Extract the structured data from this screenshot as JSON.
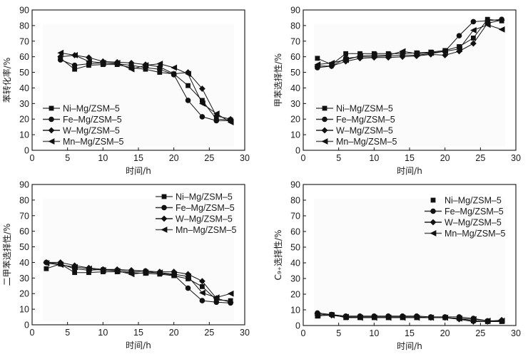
{
  "chart_data": [
    {
      "type": "line",
      "title": "",
      "xlabel": "时间/h",
      "ylabel": "苯转化率/%",
      "xlim": [
        0,
        30
      ],
      "ylim": [
        0,
        90
      ],
      "xticks": [
        "0",
        "5",
        "10",
        "15",
        "20",
        "25",
        "30"
      ],
      "yticks": [
        "0",
        "10",
        "20",
        "30",
        "40",
        "50",
        "60",
        "70",
        "80",
        "90"
      ],
      "grid": false,
      "legend_position": "bottom-left",
      "series": [
        {
          "name": "Ni–Mg/ZSM–5",
          "marker": "square",
          "x": [
            4,
            6,
            8,
            10,
            12,
            14,
            16,
            18,
            20,
            22,
            24,
            26,
            28
          ],
          "values": [
            59,
            52,
            54.5,
            55,
            55,
            53,
            52,
            50,
            49,
            41.5,
            32,
            20,
            19.5
          ]
        },
        {
          "name": "Fe–Mg/ZSM–5",
          "marker": "circle",
          "x": [
            4,
            6,
            8,
            10,
            12,
            14,
            16,
            18,
            20,
            22,
            24,
            26,
            28
          ],
          "values": [
            58,
            54.5,
            55.5,
            56,
            55.5,
            54.5,
            53,
            52,
            48.5,
            32,
            21.5,
            19,
            19
          ]
        },
        {
          "name": "W–Mg/ZSM–5",
          "marker": "diamond",
          "x": [
            4,
            6,
            8,
            10,
            12,
            14,
            16,
            18,
            20,
            22,
            24,
            26,
            28
          ],
          "values": [
            60,
            61,
            59.5,
            57,
            56.5,
            56,
            55,
            53.5,
            49,
            50,
            39.5,
            22,
            20
          ]
        },
        {
          "name": "Mn–Mg/ZSM–5",
          "marker": "triangle-left",
          "x": [
            4,
            6,
            8,
            10,
            12,
            14,
            16,
            18,
            20,
            22,
            24,
            26,
            28
          ],
          "values": [
            62.5,
            61,
            57,
            56,
            56,
            52,
            54.5,
            55.5,
            53,
            49,
            30,
            23.5,
            18
          ]
        }
      ]
    },
    {
      "type": "line",
      "title": "",
      "xlabel": "时间/h",
      "ylabel": "甲苯选择性/%",
      "xlim": [
        0,
        30
      ],
      "ylim": [
        0,
        90
      ],
      "xticks": [
        "0",
        "5",
        "10",
        "15",
        "20",
        "25",
        "30"
      ],
      "yticks": [
        "0",
        "10",
        "20",
        "30",
        "40",
        "50",
        "60",
        "70",
        "80",
        "90"
      ],
      "grid": false,
      "legend_position": "bottom-left",
      "series": [
        {
          "name": "Ni–Mg/ZSM–5",
          "marker": "square",
          "x": [
            2,
            4,
            6,
            8,
            10,
            12,
            14,
            16,
            18,
            20,
            22,
            24,
            26,
            28
          ],
          "values": [
            59,
            55,
            62,
            62,
            62,
            62,
            62,
            62.5,
            63,
            64,
            66.5,
            72,
            84,
            83
          ]
        },
        {
          "name": "Fe–Mg/ZSM–5",
          "marker": "circle",
          "x": [
            2,
            4,
            6,
            8,
            10,
            12,
            14,
            16,
            18,
            20,
            22,
            24,
            26,
            28
          ],
          "values": [
            53,
            54,
            59,
            60,
            60,
            60.5,
            61,
            61,
            62,
            63.5,
            73.5,
            82.5,
            83,
            84
          ]
        },
        {
          "name": "W–Mg/ZSM–5",
          "marker": "diamond",
          "x": [
            2,
            4,
            6,
            8,
            10,
            12,
            14,
            16,
            18,
            20,
            22,
            24,
            26,
            28
          ],
          "values": [
            54,
            54,
            57,
            59,
            59.5,
            59.5,
            60,
            60.5,
            61.5,
            61,
            63.5,
            68.5,
            81.5,
            83.5
          ]
        },
        {
          "name": "Mn–Mg/ZSM–5",
          "marker": "triangle-left",
          "x": [
            2,
            4,
            6,
            8,
            10,
            12,
            14,
            16,
            18,
            20,
            22,
            24,
            26,
            28
          ],
          "values": [
            55,
            56,
            58,
            60.5,
            61,
            61,
            63.5,
            62,
            62.5,
            63.5,
            65,
            77,
            80.5,
            77.5
          ]
        }
      ]
    },
    {
      "type": "line",
      "title": "",
      "xlabel": "时间/h",
      "ylabel": "二甲苯选择性/%",
      "xlim": [
        0,
        30
      ],
      "ylim": [
        0,
        90
      ],
      "xticks": [
        "0",
        "5",
        "10",
        "15",
        "20",
        "25",
        "30"
      ],
      "yticks": [
        "0",
        "10",
        "20",
        "30",
        "40",
        "50",
        "60",
        "70",
        "80",
        "90"
      ],
      "grid": false,
      "legend_position": "top-right",
      "series": [
        {
          "name": "Ni–Mg/ZSM–5",
          "marker": "square",
          "x": [
            2,
            4,
            6,
            8,
            10,
            12,
            14,
            16,
            18,
            20,
            22,
            24,
            26,
            28
          ],
          "values": [
            36,
            39,
            33.5,
            33.5,
            34,
            34,
            33.5,
            33,
            32.5,
            31.5,
            29.5,
            24.5,
            16,
            15.5
          ]
        },
        {
          "name": "Fe–Mg/ZSM–5",
          "marker": "circle",
          "x": [
            2,
            4,
            6,
            8,
            10,
            12,
            14,
            16,
            18,
            20,
            22,
            24,
            26,
            28
          ],
          "values": [
            40,
            39,
            36,
            35,
            35.5,
            35,
            34,
            34.5,
            33,
            32,
            23.5,
            15.5,
            14.5,
            14
          ]
        },
        {
          "name": "W–Mg/ZSM–5",
          "marker": "diamond",
          "x": [
            2,
            4,
            6,
            8,
            10,
            12,
            14,
            16,
            18,
            20,
            22,
            24,
            26,
            28
          ],
          "values": [
            40,
            40,
            38,
            36.5,
            35.5,
            35.5,
            35,
            34.5,
            34,
            34,
            32.5,
            28,
            17,
            14.5
          ]
        },
        {
          "name": "Mn–Mg/ZSM–5",
          "marker": "triangle-left",
          "x": [
            2,
            4,
            6,
            8,
            10,
            12,
            14,
            16,
            18,
            20,
            22,
            24,
            26,
            28
          ],
          "values": [
            39.5,
            38.5,
            37,
            36,
            35,
            34.5,
            32.5,
            33.5,
            33.5,
            32.5,
            31,
            20.5,
            17.5,
            20
          ]
        }
      ]
    },
    {
      "type": "line",
      "title": "",
      "xlabel": "时间/h",
      "ylabel": "C₉₊选择性/%",
      "xlim": [
        0,
        30
      ],
      "ylim": [
        0,
        90
      ],
      "xticks": [
        "0",
        "5",
        "10",
        "15",
        "20",
        "25",
        "30"
      ],
      "yticks": [
        "0",
        "10",
        "20",
        "30",
        "40",
        "50",
        "60",
        "70",
        "80",
        "90"
      ],
      "grid": false,
      "legend_position": "top-right",
      "series": [
        {
          "name": "Ni–Mg/ZSM–5",
          "marker": "square",
          "x": [
            2,
            4,
            6,
            8,
            10,
            12,
            14,
            16,
            18,
            20,
            22,
            24,
            26,
            28
          ],
          "values": [
            6,
            7,
            5,
            5,
            5,
            5,
            5,
            5,
            5,
            5,
            4.5,
            3,
            2.5,
            2.5
          ]
        },
        {
          "name": "Fe–Mg/ZSM–5",
          "marker": "circle",
          "x": [
            2,
            4,
            6,
            8,
            10,
            12,
            14,
            16,
            18,
            20,
            22,
            24,
            26,
            28
          ],
          "values": [
            8,
            7,
            6,
            6,
            6,
            6,
            6,
            6,
            5.5,
            5.5,
            5.5,
            4.5,
            3,
            3
          ]
        },
        {
          "name": "W–Mg/ZSM–5",
          "marker": "diamond",
          "x": [
            2,
            4,
            6,
            8,
            10,
            12,
            14,
            16,
            18,
            20,
            22,
            24,
            26,
            28
          ],
          "values": [
            7.5,
            6.5,
            5.5,
            5.5,
            5.5,
            5.5,
            5.5,
            5.5,
            5,
            5,
            4,
            2.5,
            2.5,
            3.5
          ]
        },
        {
          "name": "Mn–Mg/ZSM–5",
          "marker": "triangle-left",
          "x": [
            2,
            4,
            6,
            8,
            10,
            12,
            14,
            16,
            18,
            20,
            22,
            24,
            26,
            28
          ],
          "values": [
            6.5,
            6.5,
            5.5,
            5,
            5,
            5,
            5,
            5,
            5,
            5,
            4.5,
            4,
            3,
            3
          ]
        }
      ]
    }
  ]
}
